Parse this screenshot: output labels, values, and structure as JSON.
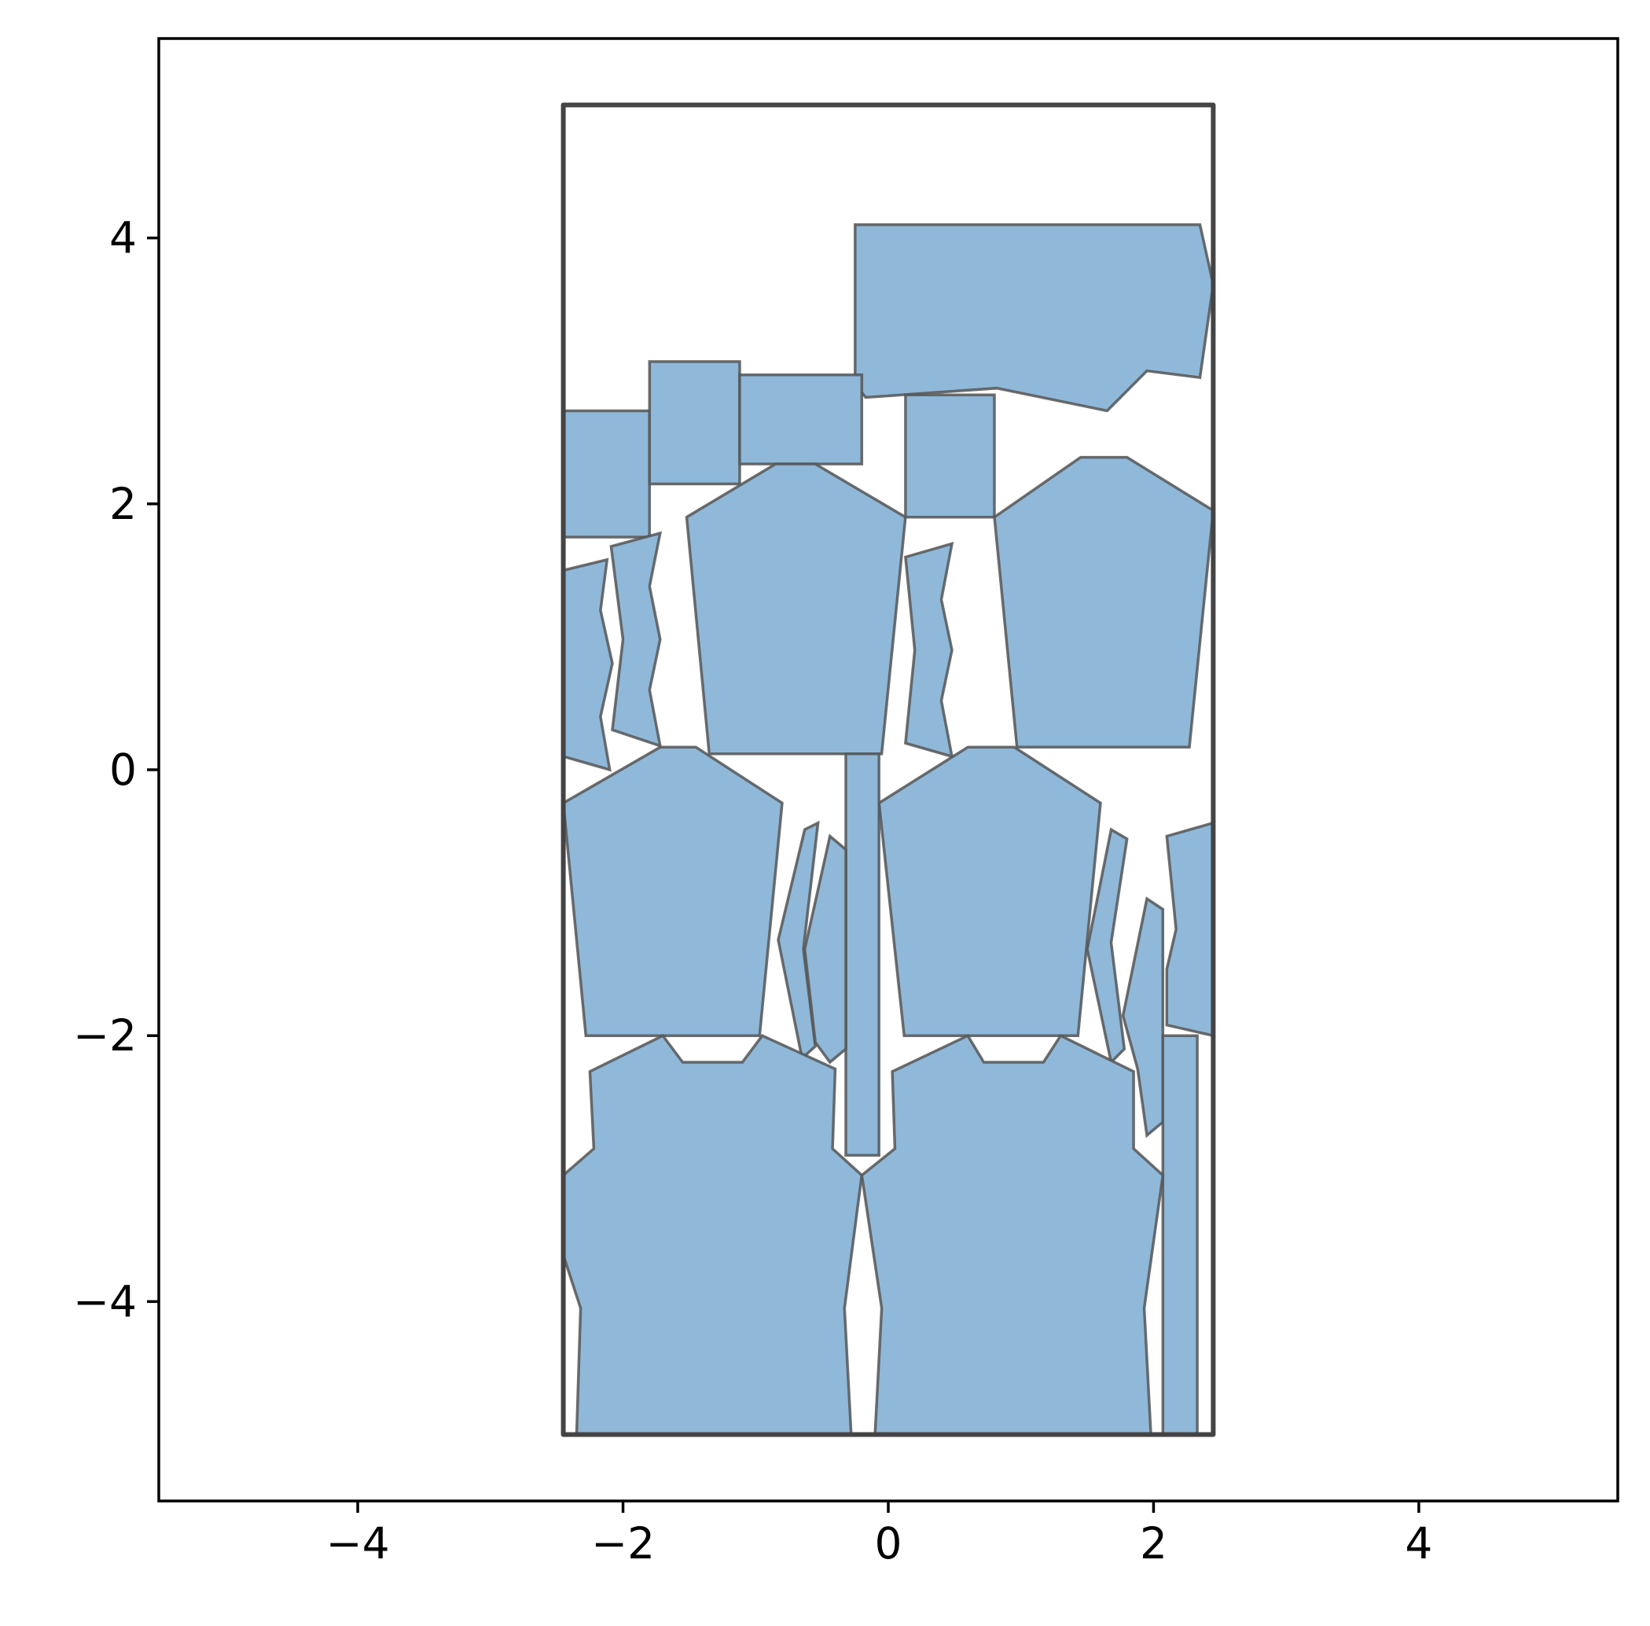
{
  "chart_data": {
    "type": "polygon_nesting",
    "title": "",
    "xlabel": "",
    "ylabel": "",
    "xlim": [
      -5.5,
      5.5
    ],
    "ylim": [
      -5.5,
      5.5
    ],
    "xticks": [
      -4,
      -2,
      0,
      2,
      4
    ],
    "yticks": [
      -4,
      -2,
      0,
      2,
      4
    ],
    "xtick_labels": [
      "−4",
      "−2",
      "0",
      "2",
      "4"
    ],
    "ytick_labels": [
      "−4",
      "−2",
      "0",
      "2",
      "4"
    ],
    "grid": false,
    "aspect": "equal",
    "colors": {
      "piece_fill": "#8fb8d9",
      "piece_edge": "#555555",
      "container_edge": "#444444",
      "axes": "#000000"
    },
    "container": [
      [
        -2.45,
        -5.0
      ],
      [
        2.45,
        -5.0
      ],
      [
        2.45,
        5.0
      ],
      [
        -2.45,
        5.0
      ]
    ],
    "pieces": [
      [
        [
          -0.25,
          2.9
        ],
        [
          -0.25,
          4.1
        ],
        [
          2.35,
          4.1
        ],
        [
          2.45,
          3.65
        ],
        [
          2.35,
          2.95
        ],
        [
          1.95,
          3.0
        ],
        [
          1.65,
          2.7
        ],
        [
          0.82,
          2.87
        ],
        [
          -0.17,
          2.8
        ]
      ],
      [
        [
          -2.45,
          1.75
        ],
        [
          -2.45,
          2.7
        ],
        [
          -1.8,
          2.7
        ],
        [
          -1.8,
          1.75
        ]
      ],
      [
        [
          -1.8,
          2.15
        ],
        [
          -1.8,
          3.07
        ],
        [
          -1.12,
          3.07
        ],
        [
          -1.12,
          2.15
        ]
      ],
      [
        [
          -1.12,
          2.3
        ],
        [
          -1.12,
          2.97
        ],
        [
          -0.2,
          2.97
        ],
        [
          -0.2,
          2.3
        ]
      ],
      [
        [
          0.13,
          1.9
        ],
        [
          0.13,
          2.82
        ],
        [
          0.8,
          2.82
        ],
        [
          0.8,
          1.9
        ]
      ],
      [
        [
          -1.35,
          0.12
        ],
        [
          -0.05,
          0.12
        ],
        [
          0.13,
          1.9
        ],
        [
          -0.55,
          2.3
        ],
        [
          -0.85,
          2.3
        ],
        [
          -1.52,
          1.9
        ]
      ],
      [
        [
          0.97,
          0.17
        ],
        [
          2.27,
          0.17
        ],
        [
          2.45,
          1.95
        ],
        [
          1.8,
          2.35
        ],
        [
          1.45,
          2.35
        ],
        [
          0.8,
          1.9
        ]
      ],
      [
        [
          -2.45,
          0.1
        ],
        [
          -2.45,
          1.5
        ],
        [
          -2.12,
          1.58
        ],
        [
          -2.17,
          1.2
        ],
        [
          -2.08,
          0.8
        ],
        [
          -2.17,
          0.4
        ],
        [
          -2.1,
          0.0
        ]
      ],
      [
        [
          -2.08,
          0.3
        ],
        [
          -2.0,
          0.98
        ],
        [
          -2.09,
          1.68
        ],
        [
          -1.72,
          1.78
        ],
        [
          -1.8,
          1.38
        ],
        [
          -1.72,
          0.98
        ],
        [
          -1.8,
          0.6
        ],
        [
          -1.72,
          0.18
        ]
      ],
      [
        [
          0.13,
          0.2
        ],
        [
          0.2,
          0.9
        ],
        [
          0.13,
          1.6
        ],
        [
          0.48,
          1.7
        ],
        [
          0.4,
          1.28
        ],
        [
          0.48,
          0.9
        ],
        [
          0.4,
          0.52
        ],
        [
          0.48,
          0.1
        ]
      ],
      [
        [
          -2.28,
          -2.0
        ],
        [
          -0.97,
          -2.0
        ],
        [
          -0.8,
          -0.25
        ],
        [
          -1.45,
          0.17
        ],
        [
          -1.72,
          0.17
        ],
        [
          -2.45,
          -0.25
        ]
      ],
      [
        [
          0.12,
          -2.0
        ],
        [
          1.43,
          -2.0
        ],
        [
          1.6,
          -0.25
        ],
        [
          0.95,
          0.17
        ],
        [
          0.6,
          0.17
        ],
        [
          -0.07,
          -0.25
        ]
      ],
      [
        [
          -0.32,
          -2.9
        ],
        [
          -0.07,
          -2.9
        ],
        [
          -0.07,
          0.12
        ],
        [
          -0.32,
          0.12
        ]
      ],
      [
        [
          -0.65,
          -2.17
        ],
        [
          -0.55,
          -2.08
        ],
        [
          -0.64,
          -1.35
        ],
        [
          -0.53,
          -0.4
        ],
        [
          -0.63,
          -0.45
        ],
        [
          -0.83,
          -1.28
        ]
      ],
      [
        [
          -0.44,
          -2.2
        ],
        [
          -0.32,
          -2.1
        ],
        [
          -0.32,
          -0.6
        ],
        [
          -0.44,
          -0.5
        ],
        [
          -0.63,
          -1.35
        ],
        [
          -0.55,
          -2.05
        ]
      ],
      [
        [
          1.68,
          -2.2
        ],
        [
          1.78,
          -2.1
        ],
        [
          1.68,
          -1.3
        ],
        [
          1.8,
          -0.52
        ],
        [
          1.68,
          -0.45
        ],
        [
          1.5,
          -1.35
        ]
      ],
      [
        [
          1.95,
          -2.75
        ],
        [
          2.07,
          -2.65
        ],
        [
          2.07,
          -1.05
        ],
        [
          1.95,
          -0.97
        ],
        [
          1.77,
          -1.85
        ],
        [
          1.88,
          -2.25
        ]
      ],
      [
        [
          2.1,
          -1.92
        ],
        [
          2.45,
          -2.0
        ],
        [
          2.45,
          -0.4
        ],
        [
          2.1,
          -0.5
        ],
        [
          2.17,
          -1.2
        ],
        [
          2.1,
          -1.5
        ]
      ],
      [
        [
          2.07,
          -5.0
        ],
        [
          2.33,
          -5.0
        ],
        [
          2.33,
          -2.0
        ],
        [
          2.07,
          -2.0
        ]
      ],
      [
        [
          -2.35,
          -5.0
        ],
        [
          -0.28,
          -5.0
        ],
        [
          -0.33,
          -4.05
        ],
        [
          -0.2,
          -3.05
        ],
        [
          -0.42,
          -2.85
        ],
        [
          -0.4,
          -2.25
        ],
        [
          -0.95,
          -2.0
        ],
        [
          -1.1,
          -2.2
        ],
        [
          -1.55,
          -2.2
        ],
        [
          -1.7,
          -2.0
        ],
        [
          -2.25,
          -2.27
        ],
        [
          -2.22,
          -2.85
        ],
        [
          -2.45,
          -3.05
        ],
        [
          -2.45,
          -3.65
        ],
        [
          -2.32,
          -4.05
        ]
      ],
      [
        [
          -0.1,
          -5.0
        ],
        [
          1.98,
          -5.0
        ],
        [
          1.93,
          -4.05
        ],
        [
          2.07,
          -3.05
        ],
        [
          1.85,
          -2.85
        ],
        [
          1.85,
          -2.27
        ],
        [
          1.3,
          -2.0
        ],
        [
          1.17,
          -2.2
        ],
        [
          0.72,
          -2.2
        ],
        [
          0.6,
          -2.0
        ],
        [
          0.03,
          -2.27
        ],
        [
          0.05,
          -2.85
        ],
        [
          -0.2,
          -3.05
        ],
        [
          -0.05,
          -4.05
        ]
      ]
    ]
  }
}
